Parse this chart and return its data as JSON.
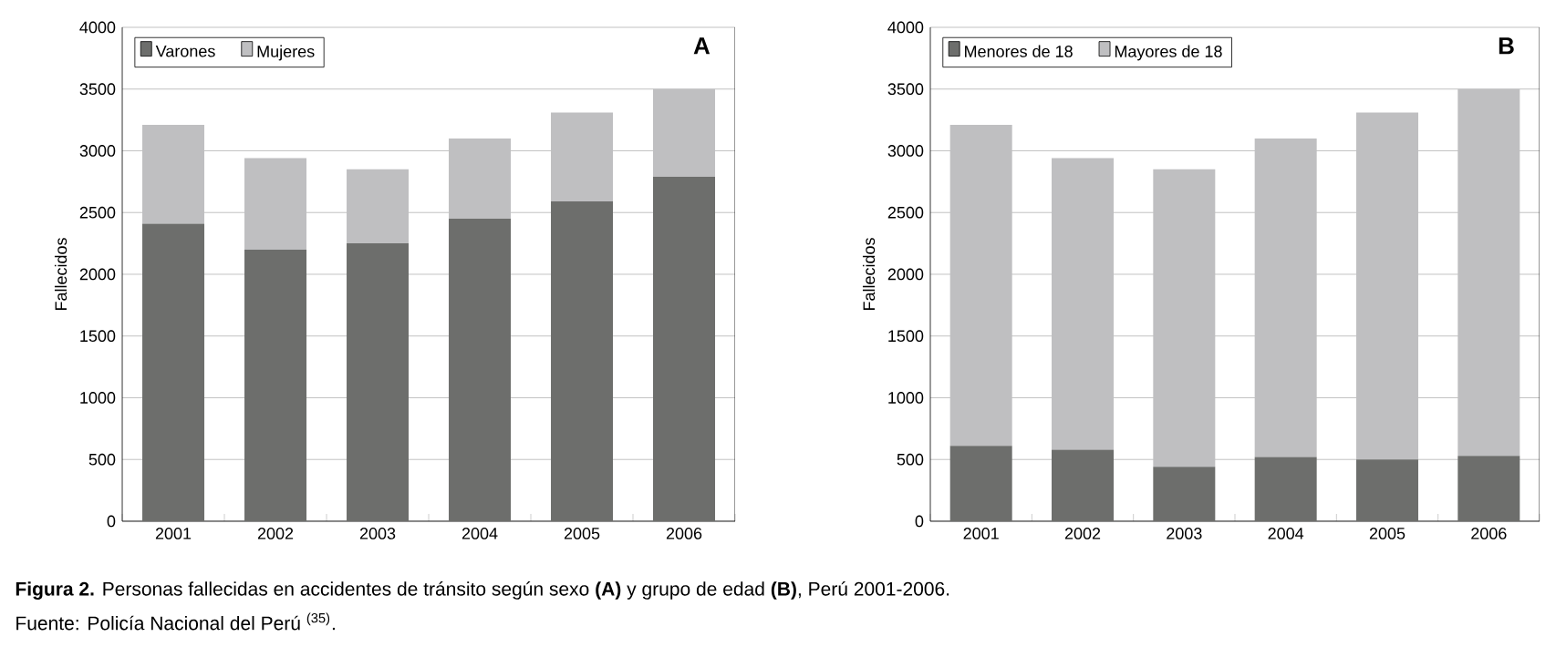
{
  "chart_data": [
    {
      "type": "bar",
      "title": "A",
      "ylabel": "Fallecidos",
      "categories": [
        "2001",
        "2002",
        "2003",
        "2004",
        "2005",
        "2006"
      ],
      "stacked": true,
      "series": [
        {
          "name": "Varones",
          "color": "#6d6e6c",
          "values": [
            2410,
            2200,
            2250,
            2450,
            2590,
            2790
          ]
        },
        {
          "name": "Mujeres",
          "color": "#bfbfc1",
          "values": [
            800,
            740,
            600,
            650,
            720,
            710
          ]
        }
      ],
      "ylim": [
        0,
        4000
      ],
      "yticks": [
        0,
        500,
        1000,
        1500,
        2000,
        2500,
        3000,
        3500,
        4000
      ],
      "grid": "y",
      "legend": "top left",
      "annotations": [
        "**Figura 2.** Personas fallecidas en accidentes de tránsito según sexo **(A)** y grupo de edad **(B)**, Perú 2001-2006.",
        "Fuente: Policía Nacional del Perú $^{(35)}$."
      ]
    },
    {
      "type": "bar",
      "title": "B",
      "ylabel": "Fallecidos",
      "categories": [
        "2001",
        "2002",
        "2003",
        "2004",
        "2005",
        "2006"
      ],
      "stacked": true,
      "series": [
        {
          "name": "Menores de 18",
          "color": "#6d6e6c",
          "values": [
            610,
            580,
            440,
            520,
            500,
            530
          ]
        },
        {
          "name": "Mayores de 18",
          "color": "#bfbfc1",
          "values": [
            2600,
            2360,
            2410,
            2580,
            2810,
            2970
          ]
        }
      ],
      "ylim": [
        0,
        4000
      ],
      "yticks": [
        0,
        500,
        1000,
        1500,
        2000,
        2500,
        3000,
        3500,
        4000
      ],
      "grid": "y",
      "legend": "top left"
    }
  ]
}
